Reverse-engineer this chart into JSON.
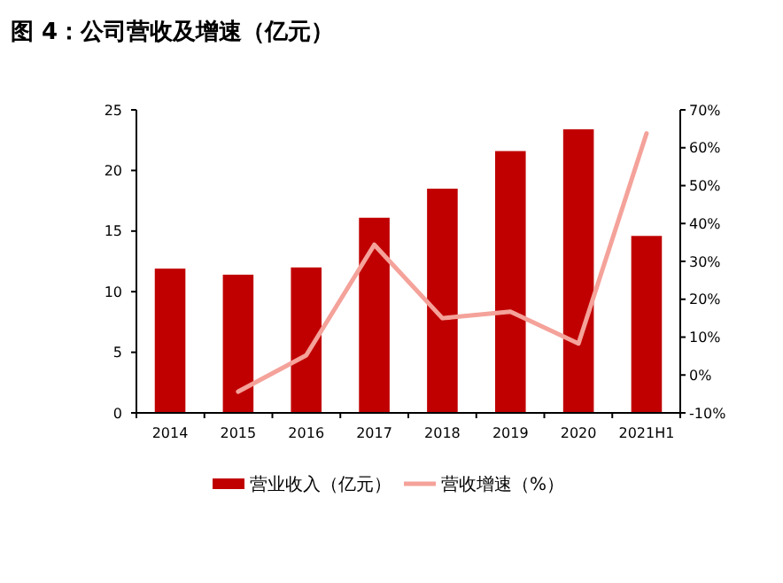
{
  "chart_data": {
    "type": "bar",
    "title": "图 4：公司营收及增速（亿元）",
    "categories": [
      "2014",
      "2015",
      "2016",
      "2017",
      "2018",
      "2019",
      "2020",
      "2021H1"
    ],
    "series": [
      {
        "name": "营业收入（亿元）",
        "color": "#c00000",
        "values": [
          11.9,
          11.4,
          12.0,
          16.1,
          18.5,
          21.6,
          23.4,
          14.6
        ]
      },
      {
        "name": "营收增速（%）",
        "type": "line",
        "axis": "y2",
        "color": "#f4a29a",
        "values": [
          null,
          -4.4,
          5.2,
          34.4,
          15.0,
          16.7,
          8.3,
          63.8
        ]
      }
    ],
    "ylim": [
      0,
      25
    ],
    "yticks": [
      0,
      5,
      10,
      15,
      20,
      25
    ],
    "y2lim": [
      -10,
      70
    ],
    "y2ticks": [
      {
        "value": -10,
        "label": "-10%"
      },
      {
        "value": 0,
        "label": "0%"
      },
      {
        "value": 10,
        "label": "10%"
      },
      {
        "value": 20,
        "label": "20%"
      },
      {
        "value": 30,
        "label": "30%"
      },
      {
        "value": 40,
        "label": "40%"
      },
      {
        "value": 50,
        "label": "50%"
      },
      {
        "value": 60,
        "label": "60%"
      },
      {
        "value": 70,
        "label": "70%"
      }
    ],
    "legend": "bottom",
    "grid": false,
    "marker": "none",
    "line_style": "solid"
  }
}
